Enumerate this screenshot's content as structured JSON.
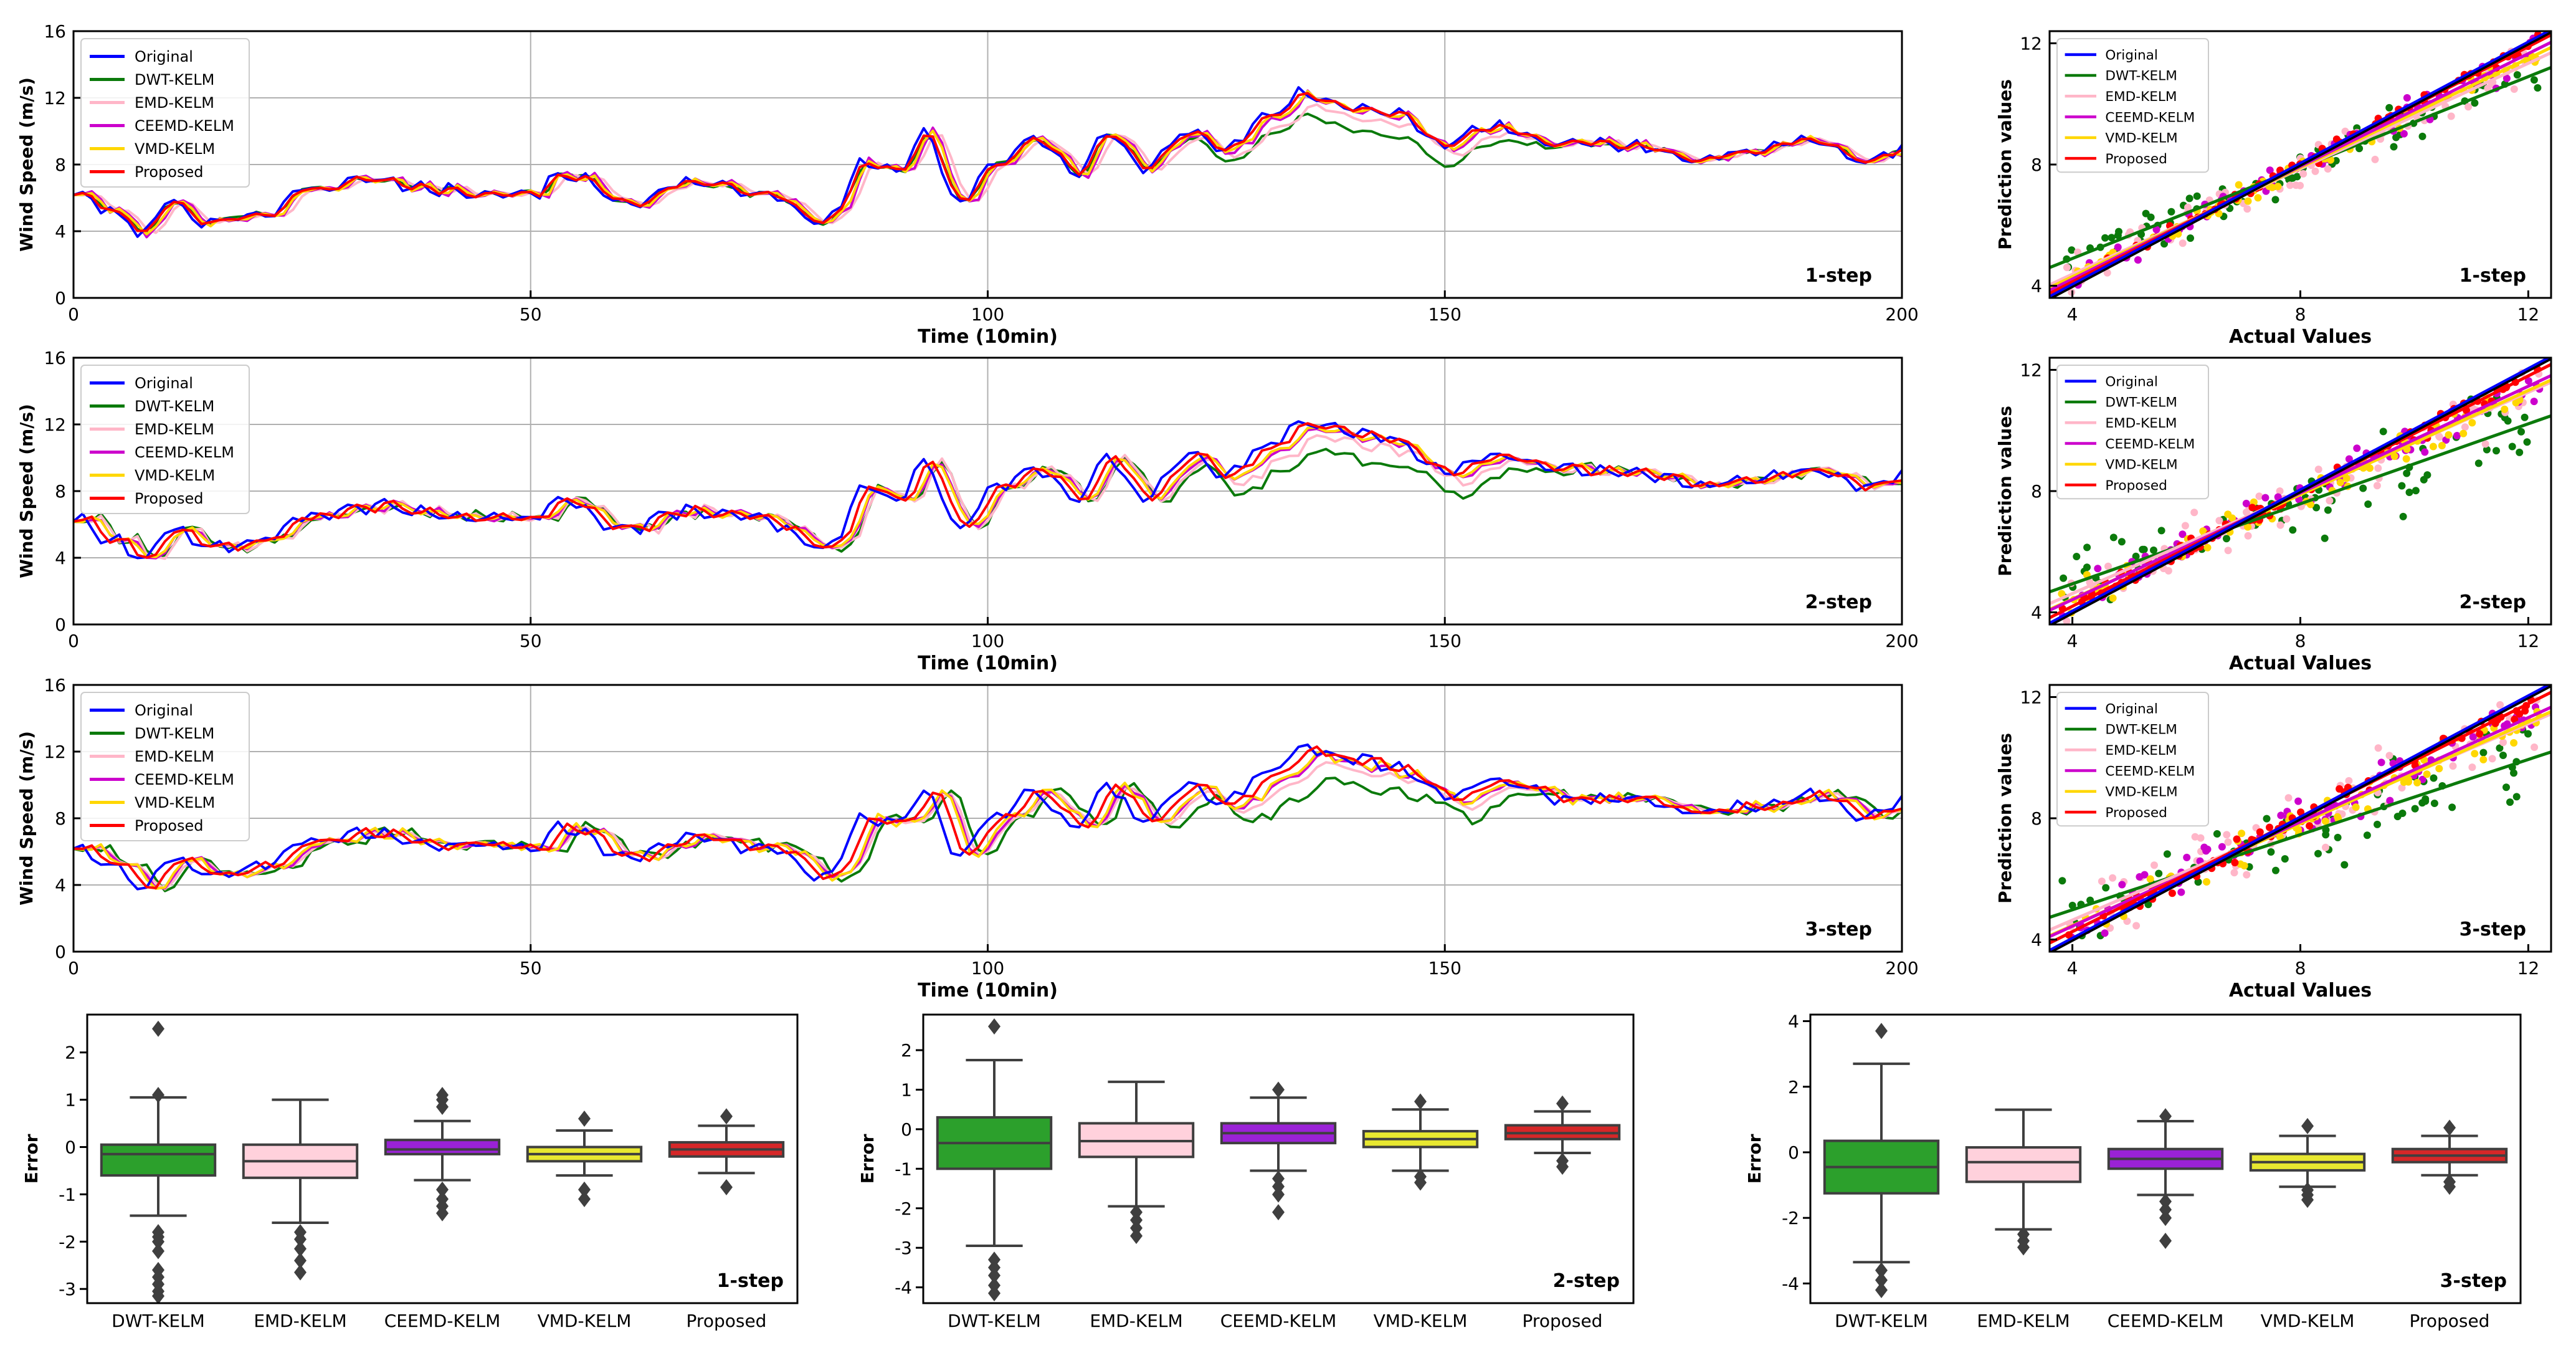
{
  "colors": {
    "Original": "#0000ff",
    "DWT-KELM": "#0b7a0b",
    "EMD-KELM": "#ffb6c8",
    "CEEMD-KELM": "#cc00cc",
    "VMD-KELM": "#ffd700",
    "Proposed": "#ff0000",
    "ideal": "#000000",
    "box_DWT-KELM": "#2ca02c",
    "box_EMD-KELM": "#ffd1dc",
    "box_CEEMD-KELM": "#9a22d6",
    "box_VMD-KELM": "#e8e830",
    "box_Proposed": "#d62728"
  },
  "legend": [
    "Original",
    "DWT-KELM",
    "EMD-KELM",
    "CEEMD-KELM",
    "VMD-KELM",
    "Proposed"
  ],
  "chart_data": [
    {
      "type": "line",
      "id": "ts1",
      "step_label": "1-step",
      "xlabel": "Time (10min)",
      "ylabel": "Wind Speed (m/s)",
      "xlim": [
        0,
        200
      ],
      "ylim": [
        0,
        16
      ],
      "xticks": [
        0,
        50,
        100,
        150,
        200
      ],
      "yticks": [
        0,
        4,
        8,
        12,
        16
      ],
      "grid": true,
      "legend_position": "upper-left",
      "original_knots": [
        [
          0,
          6.3
        ],
        [
          4,
          5.2
        ],
        [
          8,
          3.8
        ],
        [
          10,
          5.8
        ],
        [
          15,
          4.6
        ],
        [
          22,
          5.2
        ],
        [
          25,
          6.5
        ],
        [
          33,
          7.1
        ],
        [
          40,
          6.5
        ],
        [
          50,
          6.3
        ],
        [
          54,
          7.5
        ],
        [
          60,
          5.7
        ],
        [
          67,
          6.8
        ],
        [
          75,
          6.3
        ],
        [
          82,
          4.5
        ],
        [
          87,
          8.2
        ],
        [
          90,
          7.5
        ],
        [
          93,
          9.7
        ],
        [
          97,
          5.6
        ],
        [
          100,
          7.9
        ],
        [
          105,
          9.5
        ],
        [
          110,
          7.5
        ],
        [
          113,
          10.1
        ],
        [
          117,
          7.8
        ],
        [
          122,
          10.0
        ],
        [
          126,
          8.9
        ],
        [
          130,
          10.6
        ],
        [
          135,
          12.3
        ],
        [
          140,
          11.5
        ],
        [
          145,
          11.0
        ],
        [
          150,
          9.2
        ],
        [
          155,
          10.3
        ],
        [
          162,
          9.3
        ],
        [
          170,
          9.2
        ],
        [
          178,
          8.3
        ],
        [
          184,
          8.8
        ],
        [
          190,
          9.4
        ],
        [
          196,
          8.2
        ],
        [
          200,
          9.0
        ]
      ],
      "series_params": {
        "DWT-KELM": {
          "lag": 0.5,
          "shrink": 0.78,
          "noise": 0.3
        },
        "EMD-KELM": {
          "lag": 1.5,
          "shrink": 0.4,
          "noise": 0.1
        },
        "CEEMD-KELM": {
          "lag": 1.0,
          "shrink": 0.12,
          "noise": 0.15
        },
        "VMD-KELM": {
          "lag": 0.8,
          "shrink": 0.08,
          "noise": 0.1
        },
        "Proposed": {
          "lag": 0.4,
          "shrink": 0.03,
          "noise": 0.05
        }
      }
    },
    {
      "type": "line",
      "id": "ts2",
      "step_label": "2-step",
      "xlabel": "Time (10min)",
      "ylabel": "Wind Speed (m/s)",
      "xlim": [
        0,
        200
      ],
      "ylim": [
        0,
        16
      ],
      "xticks": [
        0,
        50,
        100,
        150,
        200
      ],
      "yticks": [
        0,
        4,
        8,
        12,
        16
      ],
      "grid": true,
      "legend_position": "upper-left",
      "original_knots": [
        [
          0,
          6.3
        ],
        [
          4,
          5.2
        ],
        [
          8,
          3.8
        ],
        [
          10,
          5.8
        ],
        [
          15,
          4.6
        ],
        [
          22,
          5.2
        ],
        [
          25,
          6.5
        ],
        [
          33,
          7.1
        ],
        [
          40,
          6.5
        ],
        [
          50,
          6.3
        ],
        [
          54,
          7.5
        ],
        [
          60,
          5.7
        ],
        [
          67,
          6.8
        ],
        [
          75,
          6.3
        ],
        [
          82,
          4.5
        ],
        [
          87,
          8.2
        ],
        [
          90,
          7.5
        ],
        [
          93,
          9.7
        ],
        [
          97,
          5.6
        ],
        [
          100,
          7.9
        ],
        [
          105,
          9.5
        ],
        [
          110,
          7.5
        ],
        [
          113,
          10.1
        ],
        [
          117,
          7.8
        ],
        [
          122,
          10.0
        ],
        [
          126,
          8.9
        ],
        [
          130,
          10.6
        ],
        [
          135,
          12.3
        ],
        [
          140,
          11.5
        ],
        [
          145,
          11.0
        ],
        [
          150,
          9.2
        ],
        [
          155,
          10.3
        ],
        [
          162,
          9.3
        ],
        [
          170,
          9.2
        ],
        [
          178,
          8.3
        ],
        [
          184,
          8.8
        ],
        [
          190,
          9.4
        ],
        [
          196,
          8.2
        ],
        [
          200,
          9.0
        ]
      ],
      "series_params": {
        "DWT-KELM": {
          "lag": 2.0,
          "shrink": 0.95,
          "noise": 0.4
        },
        "EMD-KELM": {
          "lag": 2.0,
          "shrink": 0.45,
          "noise": 0.15
        },
        "CEEMD-KELM": {
          "lag": 1.6,
          "shrink": 0.2,
          "noise": 0.2
        },
        "VMD-KELM": {
          "lag": 1.5,
          "shrink": 0.15,
          "noise": 0.15
        },
        "Proposed": {
          "lag": 0.8,
          "shrink": 0.05,
          "noise": 0.08
        }
      }
    },
    {
      "type": "line",
      "id": "ts3",
      "step_label": "3-step",
      "xlabel": "Time (10min)",
      "ylabel": "Wind Speed (m/s)",
      "xlim": [
        0,
        200
      ],
      "ylim": [
        0,
        16
      ],
      "xticks": [
        0,
        50,
        100,
        150,
        200
      ],
      "yticks": [
        0,
        4,
        8,
        12,
        16
      ],
      "grid": true,
      "legend_position": "upper-left",
      "original_knots": [
        [
          0,
          6.3
        ],
        [
          4,
          5.2
        ],
        [
          8,
          3.8
        ],
        [
          10,
          5.8
        ],
        [
          15,
          4.6
        ],
        [
          22,
          5.2
        ],
        [
          25,
          6.5
        ],
        [
          33,
          7.1
        ],
        [
          40,
          6.5
        ],
        [
          50,
          6.3
        ],
        [
          54,
          7.5
        ],
        [
          60,
          5.7
        ],
        [
          67,
          6.8
        ],
        [
          75,
          6.3
        ],
        [
          82,
          4.5
        ],
        [
          87,
          8.2
        ],
        [
          90,
          7.5
        ],
        [
          93,
          9.7
        ],
        [
          97,
          5.6
        ],
        [
          100,
          7.9
        ],
        [
          105,
          9.5
        ],
        [
          110,
          7.5
        ],
        [
          113,
          10.1
        ],
        [
          117,
          7.8
        ],
        [
          122,
          10.0
        ],
        [
          126,
          8.9
        ],
        [
          130,
          10.6
        ],
        [
          135,
          12.3
        ],
        [
          140,
          11.5
        ],
        [
          145,
          11.0
        ],
        [
          150,
          9.2
        ],
        [
          155,
          10.3
        ],
        [
          162,
          9.3
        ],
        [
          170,
          9.2
        ],
        [
          178,
          8.3
        ],
        [
          184,
          8.8
        ],
        [
          190,
          9.4
        ],
        [
          196,
          8.2
        ],
        [
          200,
          9.0
        ]
      ],
      "series_params": {
        "DWT-KELM": {
          "lag": 3.0,
          "shrink": 1.0,
          "noise": 0.45
        },
        "EMD-KELM": {
          "lag": 2.5,
          "shrink": 0.5,
          "noise": 0.2
        },
        "CEEMD-KELM": {
          "lag": 2.2,
          "shrink": 0.25,
          "noise": 0.2
        },
        "VMD-KELM": {
          "lag": 2.0,
          "shrink": 0.22,
          "noise": 0.15
        },
        "Proposed": {
          "lag": 1.2,
          "shrink": 0.07,
          "noise": 0.1
        }
      }
    },
    {
      "type": "scatter",
      "id": "sc1",
      "step_label": "1-step",
      "xlabel": "Actual Values",
      "ylabel": "Prediction values",
      "xlim": [
        3.6,
        12.4
      ],
      "ylim": [
        3.6,
        12.4
      ],
      "xticks": [
        4,
        8,
        12
      ],
      "yticks": [
        4,
        8,
        12
      ],
      "legend_position": "upper-left",
      "fit_lines": {
        "Original": [
          0.0,
          1.0
        ],
        "DWT-KELM": [
          1.9,
          0.75
        ],
        "EMD-KELM": [
          0.9,
          0.87
        ],
        "CEEMD-KELM": [
          0.5,
          0.93
        ],
        "VMD-KELM": [
          0.7,
          0.9
        ],
        "Proposed": [
          0.25,
          0.97
        ]
      },
      "spread": {
        "DWT-KELM": 0.5,
        "EMD-KELM": 0.5,
        "CEEMD-KELM": 0.35,
        "VMD-KELM": 0.25,
        "Proposed": 0.15
      }
    },
    {
      "type": "scatter",
      "id": "sc2",
      "step_label": "2-step",
      "xlabel": "Actual Values",
      "ylabel": "Prediction values",
      "xlim": [
        3.6,
        12.4
      ],
      "ylim": [
        3.6,
        12.4
      ],
      "xticks": [
        4,
        8,
        12
      ],
      "yticks": [
        4,
        8,
        12
      ],
      "legend_position": "upper-left",
      "fit_lines": {
        "Original": [
          0.0,
          1.0
        ],
        "DWT-KELM": [
          2.3,
          0.66
        ],
        "EMD-KELM": [
          1.3,
          0.83
        ],
        "CEEMD-KELM": [
          0.9,
          0.88
        ],
        "VMD-KELM": [
          1.0,
          0.86
        ],
        "Proposed": [
          0.4,
          0.95
        ]
      },
      "spread": {
        "DWT-KELM": 0.9,
        "EMD-KELM": 0.6,
        "CEEMD-KELM": 0.45,
        "VMD-KELM": 0.35,
        "Proposed": 0.2
      }
    },
    {
      "type": "scatter",
      "id": "sc3",
      "step_label": "3-step",
      "xlabel": "Actual Values",
      "ylabel": "Prediction values",
      "xlim": [
        3.6,
        12.4
      ],
      "ylim": [
        3.6,
        12.4
      ],
      "xticks": [
        4,
        8,
        12
      ],
      "yticks": [
        4,
        8,
        12
      ],
      "legend_position": "upper-left",
      "fit_lines": {
        "Original": [
          0.0,
          1.0
        ],
        "DWT-KELM": [
          2.5,
          0.62
        ],
        "EMD-KELM": [
          1.4,
          0.81
        ],
        "CEEMD-KELM": [
          1.0,
          0.86
        ],
        "VMD-KELM": [
          1.1,
          0.84
        ],
        "Proposed": [
          0.5,
          0.94
        ]
      },
      "spread": {
        "DWT-KELM": 1.0,
        "EMD-KELM": 0.7,
        "CEEMD-KELM": 0.5,
        "VMD-KELM": 0.4,
        "Proposed": 0.25
      }
    },
    {
      "type": "box",
      "id": "bx1",
      "step_label": "1-step",
      "ylabel": "Error",
      "ylim": [
        -3.3,
        2.8
      ],
      "yticks": [
        -3,
        -2,
        -1,
        0,
        1,
        2
      ],
      "categories": [
        "DWT-KELM",
        "EMD-KELM",
        "CEEMD-KELM",
        "VMD-KELM",
        "Proposed"
      ],
      "boxes": [
        {
          "whislo": -1.45,
          "q1": -0.6,
          "med": -0.15,
          "q3": 0.05,
          "whishi": 1.05,
          "fliers": [
            2.5,
            1.1,
            -1.8,
            -1.9,
            -2.0,
            -2.2,
            -2.6,
            -2.75,
            -2.9,
            -3.05,
            -3.15
          ]
        },
        {
          "whislo": -1.6,
          "q1": -0.65,
          "med": -0.3,
          "q3": 0.05,
          "whishi": 1.0,
          "fliers": [
            -1.8,
            -1.95,
            -2.15,
            -2.4,
            -2.65
          ]
        },
        {
          "whislo": -0.7,
          "q1": -0.15,
          "med": -0.05,
          "q3": 0.15,
          "whishi": 0.55,
          "fliers": [
            0.85,
            1.0,
            1.1,
            -0.9,
            -1.1,
            -1.25,
            -1.4
          ]
        },
        {
          "whislo": -0.6,
          "q1": -0.3,
          "med": -0.15,
          "q3": 0.0,
          "whishi": 0.35,
          "fliers": [
            0.6,
            -0.9,
            -1.1
          ]
        },
        {
          "whislo": -0.55,
          "q1": -0.2,
          "med": -0.05,
          "q3": 0.1,
          "whishi": 0.45,
          "fliers": [
            0.65,
            -0.85
          ]
        }
      ]
    },
    {
      "type": "box",
      "id": "bx2",
      "step_label": "2-step",
      "ylabel": "Error",
      "ylim": [
        -4.4,
        2.9
      ],
      "yticks": [
        -4,
        -3,
        -2,
        -1,
        0,
        1,
        2
      ],
      "categories": [
        "DWT-KELM",
        "EMD-KELM",
        "CEEMD-KELM",
        "VMD-KELM",
        "Proposed"
      ],
      "boxes": [
        {
          "whislo": -2.95,
          "q1": -1.0,
          "med": -0.35,
          "q3": 0.3,
          "whishi": 1.75,
          "fliers": [
            2.6,
            -3.3,
            -3.5,
            -3.7,
            -3.95,
            -4.15
          ]
        },
        {
          "whislo": -1.95,
          "q1": -0.7,
          "med": -0.3,
          "q3": 0.15,
          "whishi": 1.2,
          "fliers": [
            -2.1,
            -2.3,
            -2.5,
            -2.7
          ]
        },
        {
          "whislo": -1.05,
          "q1": -0.35,
          "med": -0.1,
          "q3": 0.15,
          "whishi": 0.8,
          "fliers": [
            1.0,
            -1.25,
            -1.45,
            -1.65,
            -2.1
          ]
        },
        {
          "whislo": -1.05,
          "q1": -0.45,
          "med": -0.25,
          "q3": -0.05,
          "whishi": 0.5,
          "fliers": [
            0.7,
            -1.2,
            -1.35
          ]
        },
        {
          "whislo": -0.6,
          "q1": -0.25,
          "med": -0.1,
          "q3": 0.1,
          "whishi": 0.45,
          "fliers": [
            0.65,
            -0.8,
            -0.95
          ]
        }
      ]
    },
    {
      "type": "box",
      "id": "bx3",
      "step_label": "3-step",
      "ylabel": "Error",
      "ylim": [
        -4.6,
        4.2
      ],
      "yticks": [
        -4,
        -2,
        0,
        2,
        4
      ],
      "categories": [
        "DWT-KELM",
        "EMD-KELM",
        "CEEMD-KELM",
        "VMD-KELM",
        "Proposed"
      ],
      "boxes": [
        {
          "whislo": -3.35,
          "q1": -1.25,
          "med": -0.45,
          "q3": 0.35,
          "whishi": 2.7,
          "fliers": [
            3.7,
            -3.6,
            -3.9,
            -4.2
          ]
        },
        {
          "whislo": -2.35,
          "q1": -0.9,
          "med": -0.3,
          "q3": 0.15,
          "whishi": 1.3,
          "fliers": [
            -2.5,
            -2.7,
            -2.9
          ]
        },
        {
          "whislo": -1.3,
          "q1": -0.5,
          "med": -0.2,
          "q3": 0.1,
          "whishi": 0.95,
          "fliers": [
            1.1,
            -1.5,
            -1.75,
            -2.0,
            -2.7
          ]
        },
        {
          "whislo": -1.05,
          "q1": -0.55,
          "med": -0.3,
          "q3": -0.05,
          "whishi": 0.5,
          "fliers": [
            0.8,
            -1.15,
            -1.3,
            -1.45
          ]
        },
        {
          "whislo": -0.7,
          "q1": -0.3,
          "med": -0.1,
          "q3": 0.1,
          "whishi": 0.5,
          "fliers": [
            0.75,
            -0.9,
            -1.05
          ]
        }
      ]
    }
  ]
}
